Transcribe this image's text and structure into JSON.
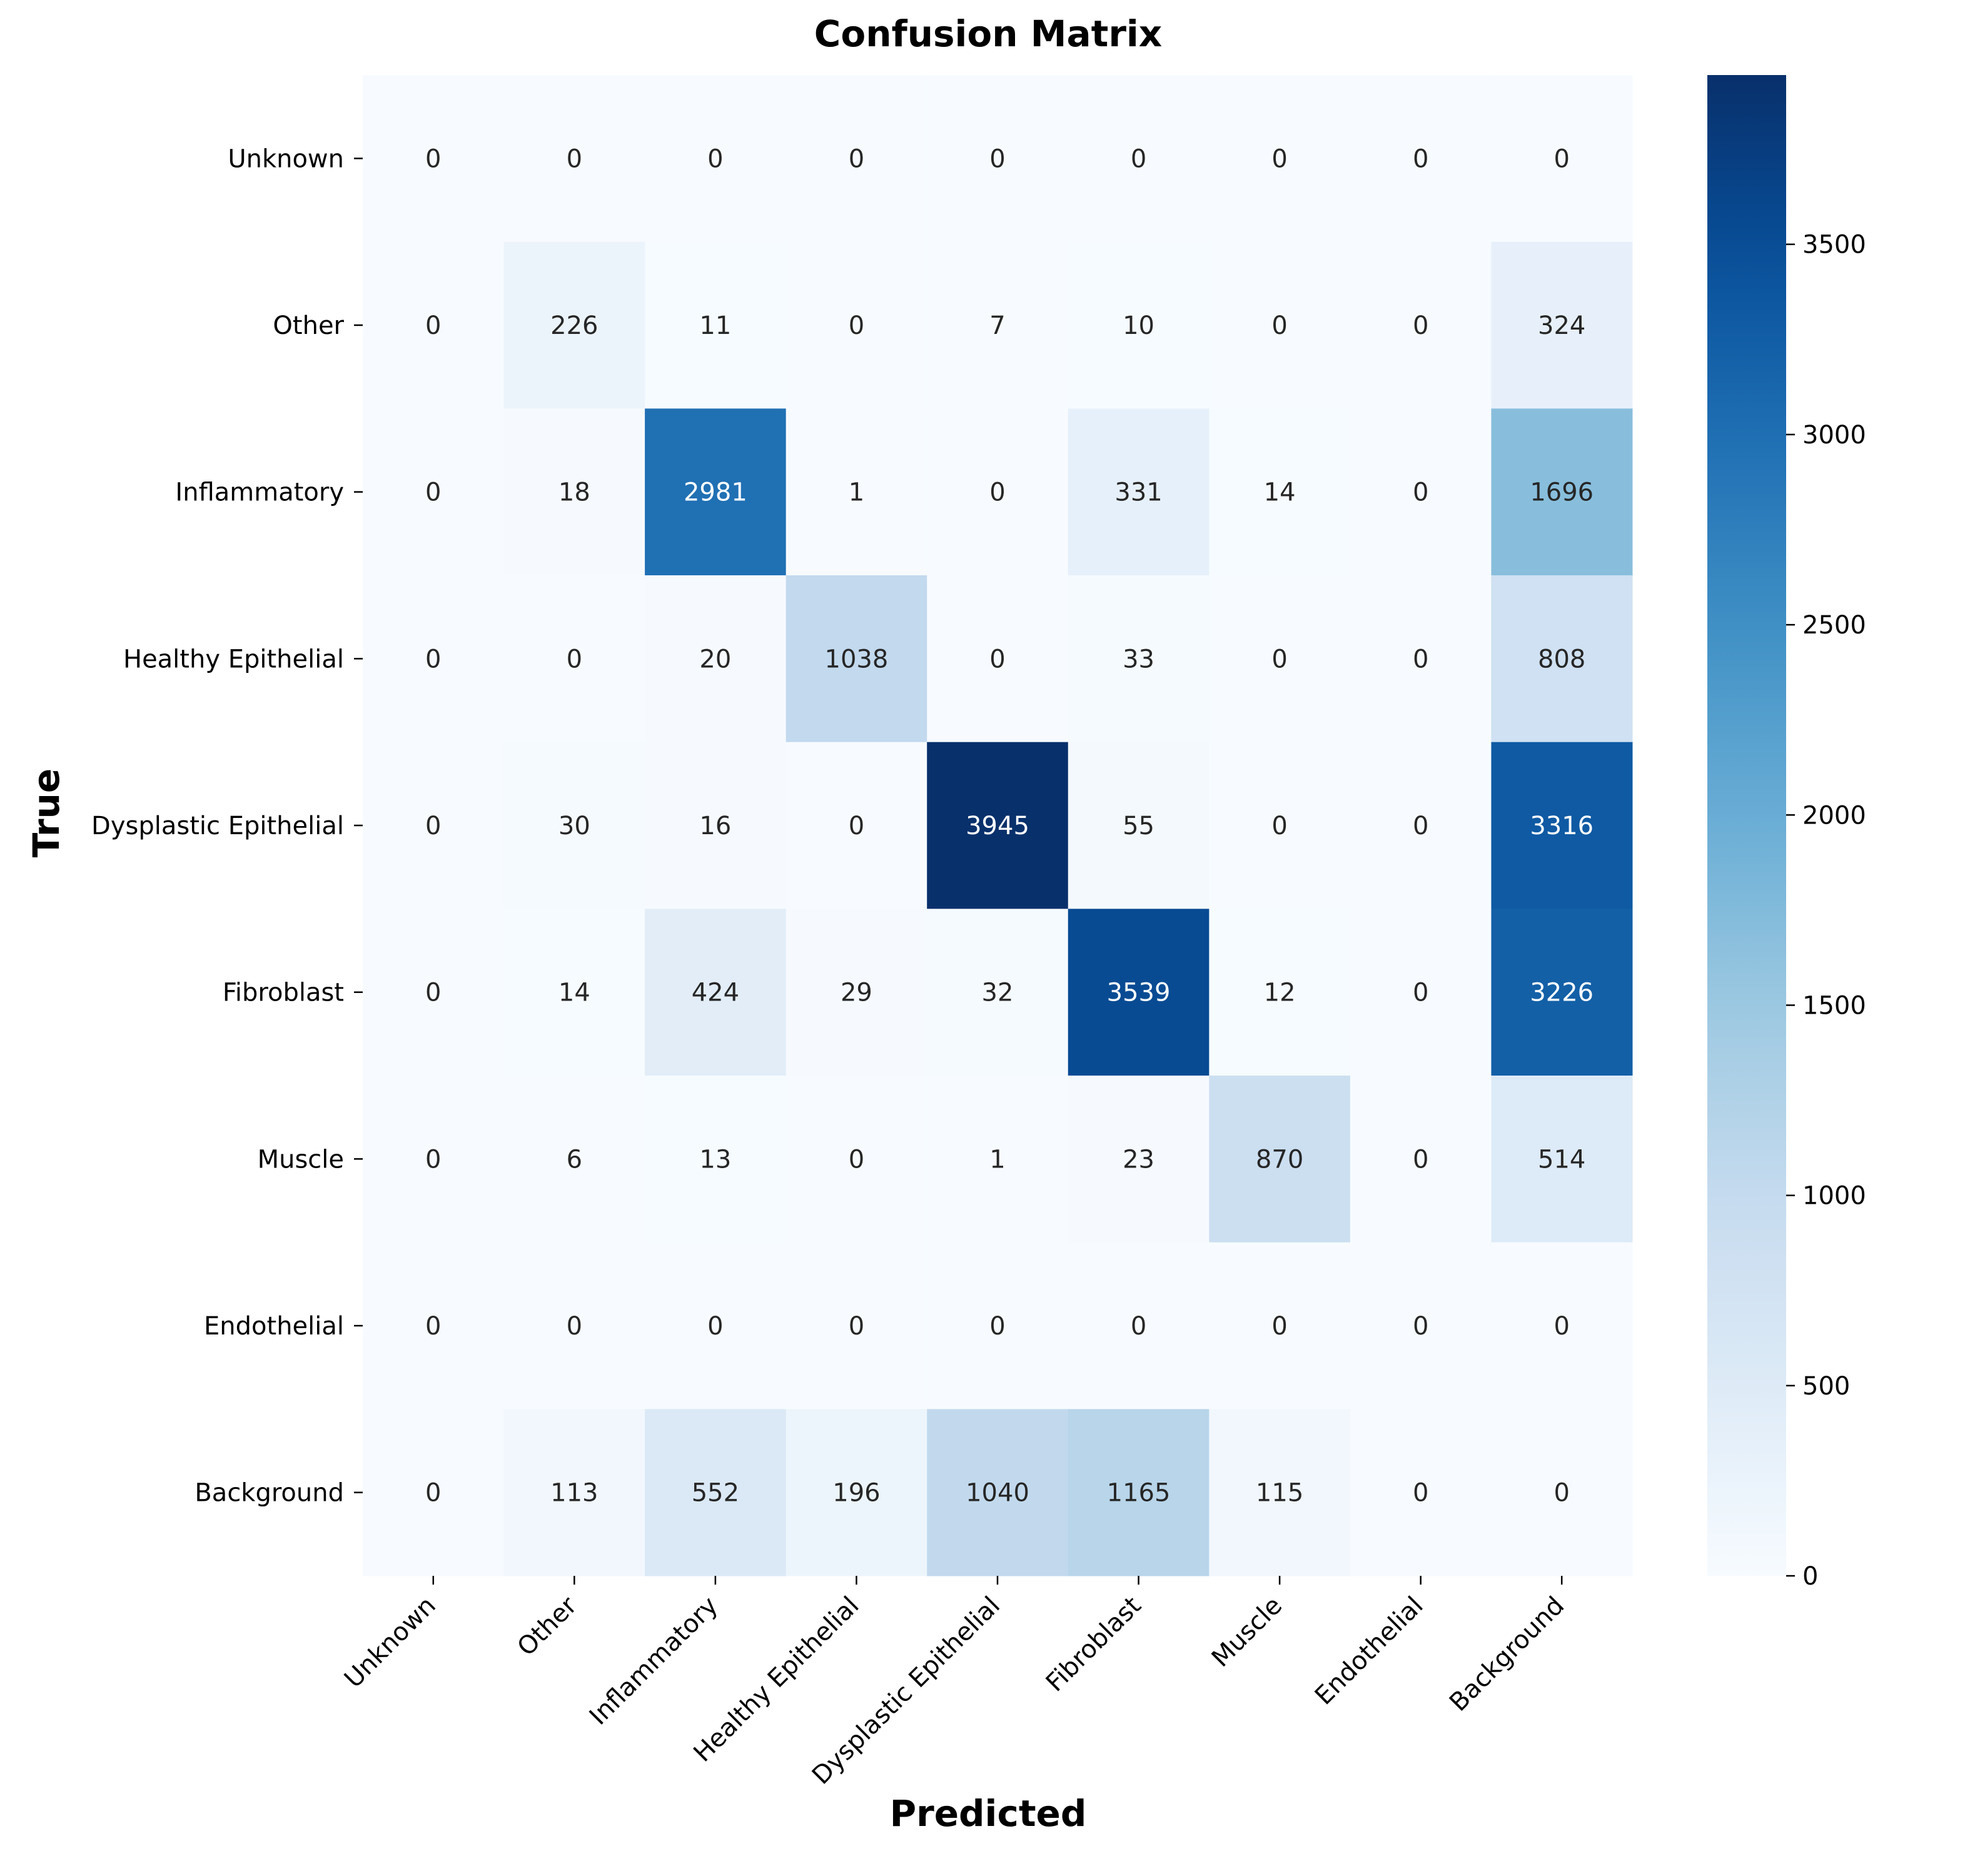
{
  "chart_data": {
    "type": "heatmap",
    "title": "Confusion Matrix",
    "xlabel": "Predicted",
    "ylabel": "True",
    "x_categories": [
      "Unknown",
      "Other",
      "Inflammatory",
      "Healthy Epithelial",
      "Dysplastic Epithelial",
      "Fibroblast",
      "Muscle",
      "Endothelial",
      "Background"
    ],
    "y_categories": [
      "Unknown",
      "Other",
      "Inflammatory",
      "Healthy Epithelial",
      "Dysplastic Epithelial",
      "Fibroblast",
      "Muscle",
      "Endothelial",
      "Background"
    ],
    "values": [
      [
        0,
        0,
        0,
        0,
        0,
        0,
        0,
        0,
        0
      ],
      [
        0,
        226,
        11,
        0,
        7,
        10,
        0,
        0,
        324
      ],
      [
        0,
        18,
        2981,
        1,
        0,
        331,
        14,
        0,
        1696
      ],
      [
        0,
        0,
        20,
        1038,
        0,
        33,
        0,
        0,
        808
      ],
      [
        0,
        30,
        16,
        0,
        3945,
        55,
        0,
        0,
        3316
      ],
      [
        0,
        14,
        424,
        29,
        32,
        3539,
        12,
        0,
        3226
      ],
      [
        0,
        6,
        13,
        0,
        1,
        23,
        870,
        0,
        514
      ],
      [
        0,
        0,
        0,
        0,
        0,
        0,
        0,
        0,
        0
      ],
      [
        0,
        113,
        552,
        196,
        1040,
        1165,
        115,
        0,
        0
      ]
    ],
    "colormap": "Blues",
    "colorbar": {
      "vmin": 0,
      "vmax": 3945,
      "ticks": [
        0,
        500,
        1000,
        1500,
        2000,
        2500,
        3000,
        3500
      ]
    },
    "colors": {
      "low": "#f7fbff",
      "high": "#08306b",
      "dark_text": "#262626",
      "light_text": "#ffffff"
    }
  }
}
